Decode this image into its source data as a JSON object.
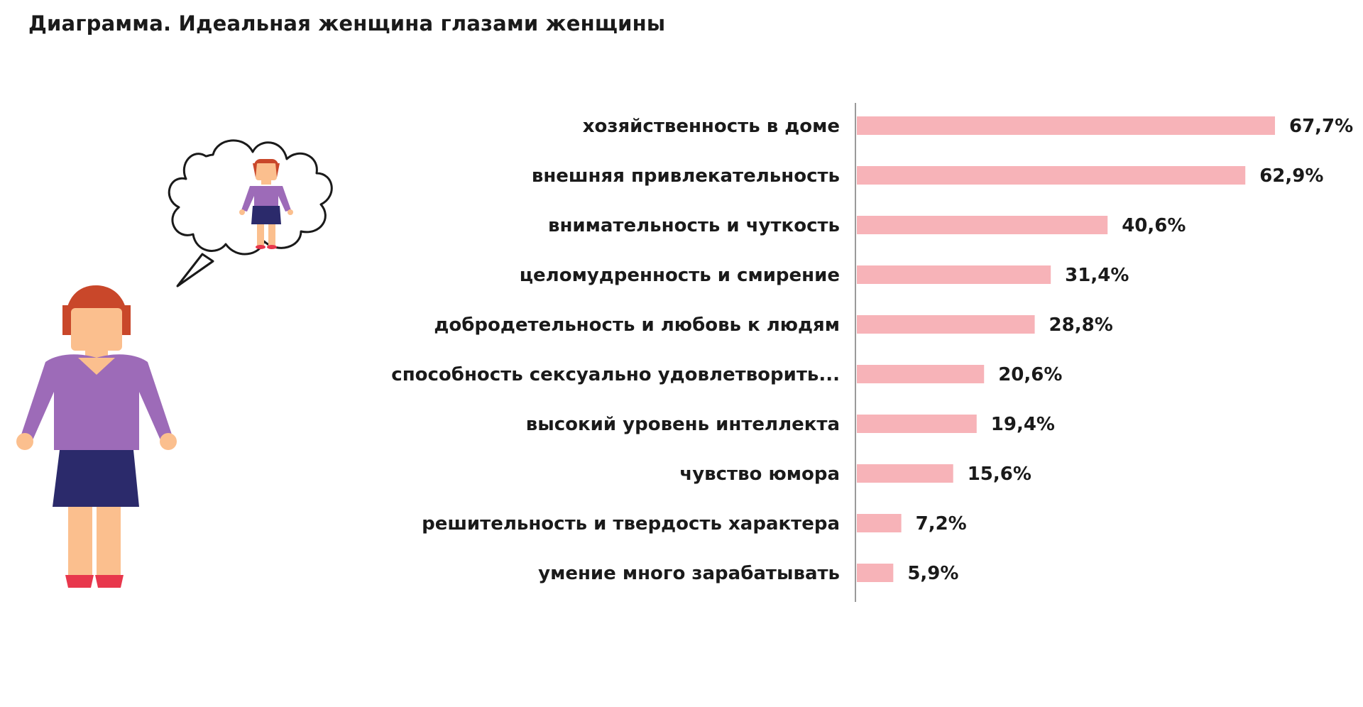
{
  "title": "Диаграмма. Идеальная женщина глазами женщины",
  "colors": {
    "bar": "#f7b3b8",
    "axis": "#9a9a9a",
    "shirt": "#9d6bb8",
    "skirt": "#2b2a6b",
    "skin": "#fbbf8e",
    "hair": "#c9472a",
    "shoes": "#e8374c"
  },
  "chart_data": {
    "type": "bar",
    "orientation": "horizontal",
    "categories": [
      "хозяйственность в доме",
      "внешняя привлекательность",
      "внимательность и чуткость",
      "целомудренность и смирение",
      "добродетельность и любовь к людям",
      "способность сексуально удовлетворить...",
      "высокий уровень интеллекта",
      "чувство юмора",
      "решительность и твердость характера",
      "умение много зарабатывать"
    ],
    "values": [
      67.7,
      62.9,
      40.6,
      31.4,
      28.8,
      20.6,
      19.4,
      15.6,
      7.2,
      5.9
    ],
    "value_labels": [
      "67,7%",
      "62,9%",
      "40,6%",
      "31,4%",
      "28,8%",
      "20,6%",
      "19,4%",
      "15,6%",
      "7,2%",
      "5,9%"
    ],
    "xlim": [
      0,
      100
    ],
    "grid": false
  }
}
